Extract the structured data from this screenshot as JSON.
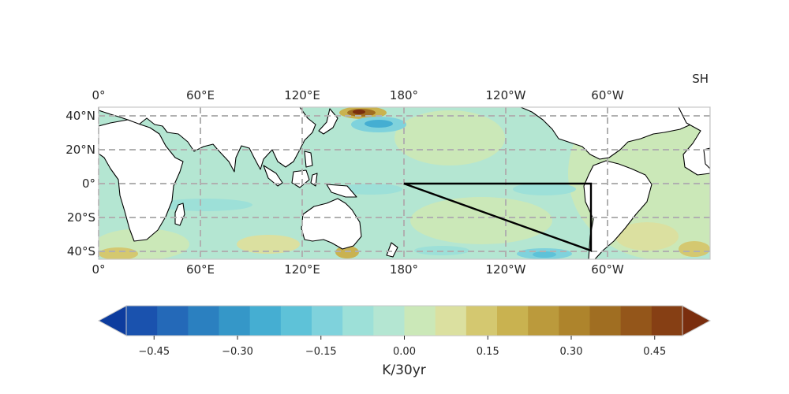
{
  "map": {
    "title": "SH",
    "lon_ticks_top": [
      "0°",
      "60°E",
      "120°E",
      "180°",
      "120°W",
      "60°W"
    ],
    "lon_ticks_bottom": [
      "0°",
      "60°E",
      "120°E",
      "180°",
      "120°W",
      "60°W"
    ],
    "lat_ticks": [
      "40°N",
      "20°N",
      "0°",
      "20°S",
      "40°S"
    ],
    "extent": {
      "lon": [
        0,
        360
      ],
      "lat": [
        -45,
        45
      ]
    },
    "grid": true,
    "ocean_color": "#b4e6d2",
    "land_color": "#ffffff",
    "coastline_color": "#000000",
    "region_triangle": {
      "vertices_lonlat": [
        [
          180,
          0
        ],
        [
          290,
          0
        ],
        [
          290,
          -40
        ]
      ],
      "color": "#000000"
    }
  },
  "colorbar": {
    "label": "K/30yr",
    "ticks": [
      "−0.45",
      "−0.30",
      "−0.15",
      "0.00",
      "0.15",
      "0.30",
      "0.45"
    ],
    "tick_values": [
      -0.45,
      -0.3,
      -0.15,
      0.0,
      0.15,
      0.3,
      0.45
    ],
    "range": [
      -0.5,
      0.5
    ],
    "extend": "both",
    "colors": [
      "#0d3c9e",
      "#1a52ae",
      "#2469b8",
      "#2b80c0",
      "#3597c8",
      "#45aed2",
      "#5ec2d8",
      "#7fd2dc",
      "#9de0d8",
      "#b4e6d2",
      "#cbe8b8",
      "#dbe0a0",
      "#d4c870",
      "#c9b250",
      "#bb9a3c",
      "#ae842c",
      "#a06e22",
      "#94561a",
      "#863f14",
      "#7a2e0e"
    ]
  }
}
